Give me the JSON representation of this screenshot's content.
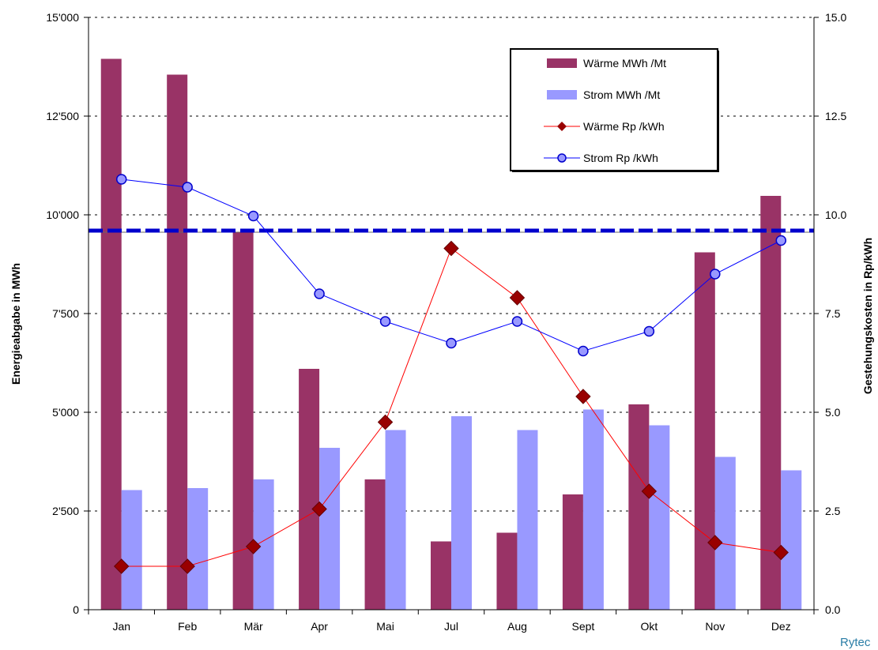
{
  "chart_data": {
    "type": "bar",
    "categories": [
      "Jan",
      "Feb",
      "Mär",
      "Apr",
      "Mai",
      "Jul",
      "Aug",
      "Sept",
      "Okt",
      "Nov",
      "Dez"
    ],
    "series": [
      {
        "name": "Wärme MWh  /Mt",
        "kind": "bar",
        "axis": "left",
        "color": "#993366",
        "values": [
          13950,
          13550,
          9550,
          6100,
          3300,
          1730,
          1950,
          2920,
          5200,
          9050,
          10480
        ]
      },
      {
        "name": "Strom MWh  /Mt",
        "kind": "bar",
        "axis": "left",
        "color": "#9999ff",
        "values": [
          3030,
          3080,
          3300,
          4100,
          4550,
          4900,
          4550,
          5070,
          4670,
          3870,
          3530
        ]
      },
      {
        "name": "Wärme Rp  /kWh",
        "kind": "line",
        "axis": "right",
        "color": "#ff0000",
        "marker_color": "#990000",
        "marker": "diamond",
        "values": [
          1.1,
          1.1,
          1.6,
          2.55,
          4.75,
          9.15,
          7.9,
          5.4,
          3.0,
          1.7,
          1.45
        ]
      },
      {
        "name": "Strom Rp /kWh",
        "kind": "line",
        "axis": "right",
        "color": "#0000ff",
        "marker_color": "#9999ff",
        "marker": "circle",
        "values": [
          10.9,
          10.7,
          9.97,
          8.0,
          7.3,
          6.75,
          7.3,
          6.55,
          7.05,
          8.5,
          9.35
        ]
      }
    ],
    "reference_line": {
      "axis": "right",
      "value": 9.6,
      "style": "dashed",
      "color": "#0000cc"
    },
    "y_left": {
      "label": "Energieabgabe in MWh",
      "range": [
        0,
        15000
      ],
      "ticks": [
        0,
        2500,
        5000,
        7500,
        10000,
        12500,
        15000
      ],
      "tick_labels": [
        "0",
        "2'500",
        "5'000",
        "7'500",
        "10'000",
        "12'500",
        "15'000"
      ]
    },
    "y_right": {
      "label": "Gestehungskosten in Rp/kWh",
      "range": [
        0,
        15
      ],
      "ticks": [
        0,
        2.5,
        5,
        7.5,
        10,
        12.5,
        15
      ],
      "tick_labels": [
        "0.0",
        "2.5",
        "5.0",
        "7.5",
        "10.0",
        "12.5",
        "15.0"
      ]
    },
    "grid": "horizontal-dotted",
    "legend_position": "top-right",
    "credit": "Rytec"
  }
}
